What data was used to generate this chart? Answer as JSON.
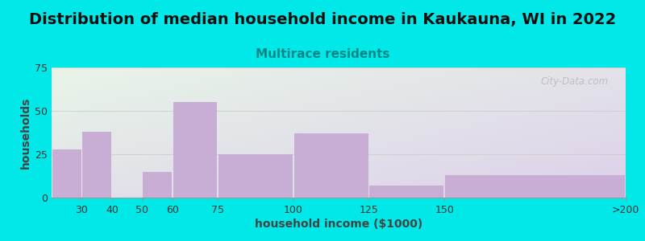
{
  "title": "Distribution of median household income in Kaukauna, WI in 2022",
  "subtitle": "Multirace residents",
  "xlabel": "household income ($1000)",
  "ylabel": "households",
  "bar_labels": [
    "30",
    "40",
    "50",
    "60",
    "75",
    "100",
    "125",
    "150",
    ">200"
  ],
  "bar_values": [
    28,
    38,
    0,
    15,
    55,
    25,
    37,
    7,
    13
  ],
  "bar_left_edges": [
    20,
    30,
    40,
    50,
    60,
    75,
    100,
    125,
    150
  ],
  "bar_right_edges": [
    30,
    40,
    50,
    60,
    75,
    100,
    125,
    150,
    210
  ],
  "tick_positions": [
    30,
    40,
    50,
    60,
    75,
    100,
    125,
    150,
    210
  ],
  "bar_color": "#c8aed4",
  "bg_color_outer": "#00e8e8",
  "ylim": [
    0,
    75
  ],
  "yticks": [
    0,
    25,
    50,
    75
  ],
  "title_fontsize": 14,
  "subtitle_fontsize": 11,
  "subtitle_color": "#008888",
  "axis_label_fontsize": 10,
  "tick_fontsize": 9,
  "watermark_text": "City-Data.com",
  "watermark_color": "#b0b0b0",
  "xlim_left": 20,
  "xlim_right": 210,
  "bar_gap": 0.5
}
